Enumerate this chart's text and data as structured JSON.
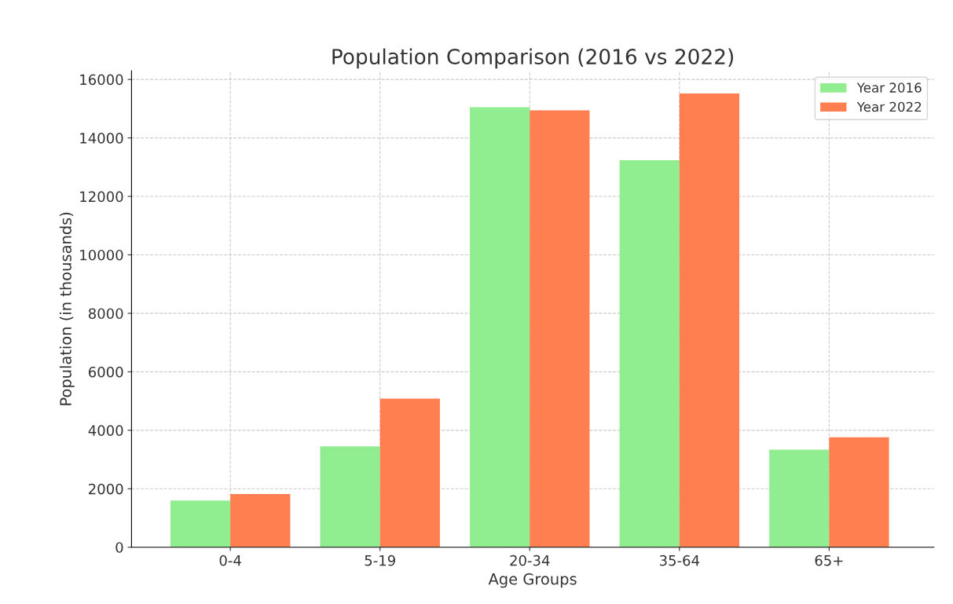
{
  "chart_data": {
    "type": "bar",
    "title": "Population Comparison (2016 vs 2022)",
    "xlabel": "Age Groups",
    "ylabel": "Population (in thousands)",
    "categories": [
      "0-4",
      "5-19",
      "20-34",
      "35-64",
      "65+"
    ],
    "series": [
      {
        "name": "Year 2016",
        "color": "#90ee90",
        "values": [
          1600,
          3450,
          15050,
          13240,
          3340
        ]
      },
      {
        "name": "Year 2022",
        "color": "#ff7f50",
        "values": [
          1820,
          5080,
          14940,
          15520,
          3760
        ]
      }
    ],
    "ylim": [
      0,
      16300
    ],
    "yticks": [
      0,
      2000,
      4000,
      6000,
      8000,
      10000,
      12000,
      14000,
      16000
    ],
    "grid": true,
    "legend": "top right"
  }
}
